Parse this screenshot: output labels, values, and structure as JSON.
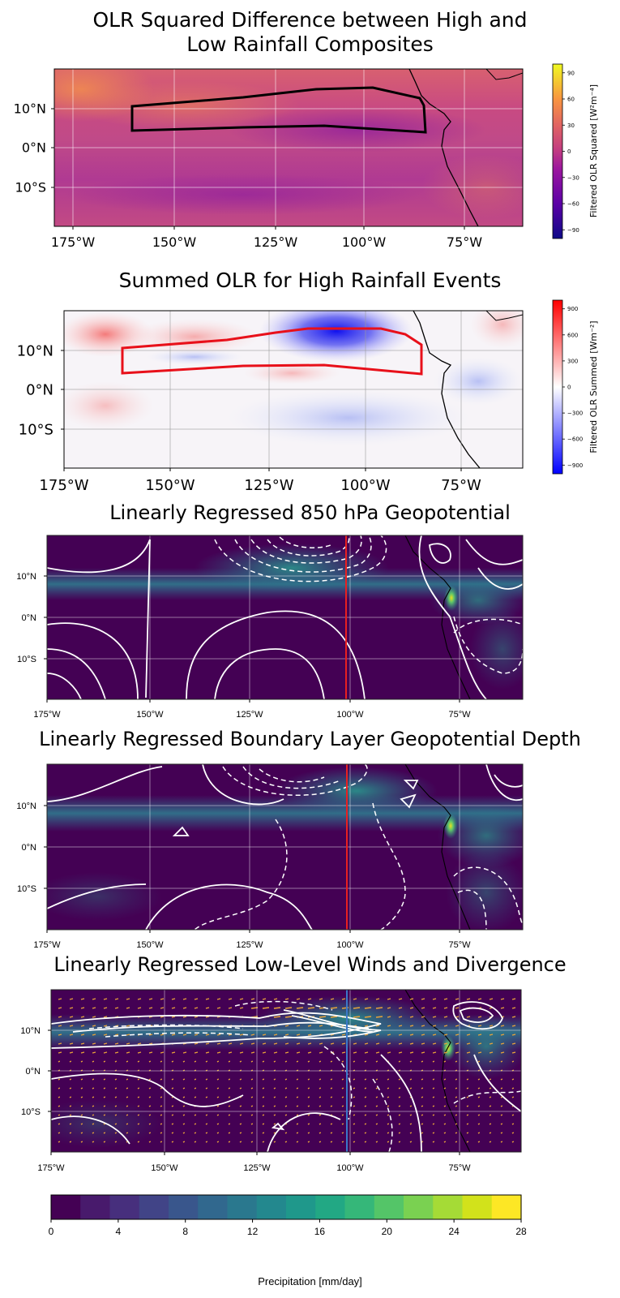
{
  "titles": {
    "panel1_line1": "OLR Squared Difference between High and",
    "panel1_line2": "Low Rainfall Composites",
    "panel2": "Summed OLR for High Rainfall Events",
    "panel3": "Linearly Regressed 850 hPa Geopotential",
    "panel4": "Linearly Regressed Boundary Layer Geopotential Depth",
    "panel5": "Linearly Regressed Low-Level Winds and Divergence"
  },
  "colors": {
    "panel1_box": "#000000",
    "panel2_box": "#e8101a",
    "panel3_line": "#e82020",
    "panel4_line": "#e82020",
    "panel5_line": "#3a78c9",
    "precip_background": "#440154",
    "contour": "#ffffff",
    "wind_arrows": "#e8a33a"
  },
  "chart_data": [
    {
      "type": "heatmap",
      "title": "OLR Squared Difference between High and Low Rainfall Composites",
      "x_ticks": [
        "175°W",
        "150°W",
        "125°W",
        "100°W",
        "75°W"
      ],
      "y_ticks": [
        "10°N",
        "0°N",
        "10°S"
      ],
      "colorbar": {
        "label": "Filtered OLR Squared [W²m⁻⁴]",
        "ticks": [
          "90",
          "60",
          "30",
          "0",
          "−30",
          "−60",
          "−90"
        ],
        "range": [
          -100,
          100
        ],
        "colormap": "plasma"
      },
      "box_region": {
        "lon": [
          -160,
          -85
        ],
        "lat": [
          4,
          15
        ]
      },
      "grid": true
    },
    {
      "type": "heatmap",
      "title": "Summed OLR for High Rainfall Events",
      "x_ticks": [
        "175°W",
        "150°W",
        "125°W",
        "100°W",
        "75°W"
      ],
      "y_ticks": [
        "10°N",
        "0°N",
        "10°S"
      ],
      "colorbar": {
        "label": "Filtered OLR Summed [Wm⁻²]",
        "ticks": [
          "900",
          "600",
          "300",
          "0",
          "−300",
          "−600",
          "−900"
        ],
        "range": [
          -1000,
          1000
        ],
        "colormap": "bwr"
      },
      "box_region": {
        "lon": [
          -160,
          -85
        ],
        "lat": [
          4,
          15
        ]
      },
      "grid": true
    },
    {
      "type": "heatmap",
      "title": "Linearly Regressed 850 hPa Geopotential",
      "x_ticks": [
        "175°W",
        "150°W",
        "125°W",
        "100°W",
        "75°W"
      ],
      "y_ticks": [
        "10°N",
        "0°N",
        "10°S"
      ],
      "reference_line_lon": -103,
      "grid": true
    },
    {
      "type": "heatmap",
      "title": "Linearly Regressed Boundary Layer Geopotential Depth",
      "x_ticks": [
        "175°W",
        "150°W",
        "125°W",
        "100°W",
        "75°W"
      ],
      "y_ticks": [
        "10°N",
        "0°N",
        "10°S"
      ],
      "reference_line_lon": -103,
      "grid": true
    },
    {
      "type": "heatmap",
      "title": "Linearly Regressed Low-Level Winds and Divergence",
      "x_ticks": [
        "175°W",
        "150°W",
        "125°W",
        "100°W",
        "75°W"
      ],
      "y_ticks": [
        "10°N",
        "0°N",
        "10°S"
      ],
      "reference_line_lon": -103,
      "grid": true
    }
  ],
  "precip_colorbar": {
    "label": "Precipitation [mm/day]",
    "ticks": [
      "0",
      "4",
      "8",
      "12",
      "16",
      "20",
      "24",
      "28"
    ],
    "range": [
      0,
      28
    ],
    "colors": [
      "#440154",
      "#481a6c",
      "#472f7d",
      "#414487",
      "#39568c",
      "#31688e",
      "#2a788e",
      "#23888e",
      "#1f988b",
      "#22a884",
      "#35b779",
      "#54c568",
      "#7ad151",
      "#a5db36",
      "#d2e21b",
      "#fde725"
    ]
  }
}
